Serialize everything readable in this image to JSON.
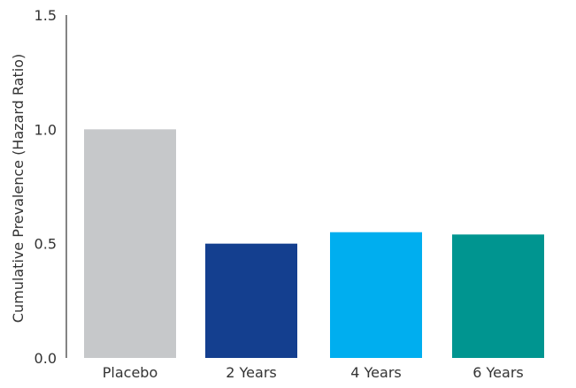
{
  "chart_data": {
    "type": "bar",
    "title": "",
    "xlabel": "",
    "ylabel": "Cumulative Prevalence (Hazard Ratio)",
    "categories": [
      "Placebo",
      "2 Years",
      "4 Years",
      "6 Years"
    ],
    "values": [
      1.0,
      0.5,
      0.55,
      0.54
    ],
    "colors": [
      "#c6c8ca",
      "#143f8f",
      "#00aeef",
      "#009590"
    ],
    "ylim": [
      0,
      1.5
    ],
    "yticks": [
      0,
      0.5,
      1.0,
      1.5
    ],
    "ytick_labels": [
      "0.0",
      "0.5",
      "1.0",
      "1.5"
    ],
    "grid": false,
    "legend": "none"
  }
}
